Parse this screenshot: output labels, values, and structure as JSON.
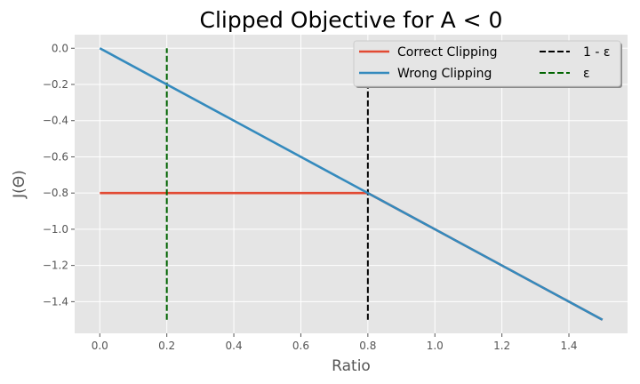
{
  "chart_data": {
    "type": "line",
    "title": "Clipped Objective for A < 0",
    "xlabel": "Ratio",
    "ylabel": "J(Θ)",
    "xlim": [
      -0.075,
      1.575
    ],
    "ylim": [
      -1.575,
      0.075
    ],
    "xticks": [
      0.0,
      0.2,
      0.4,
      0.6,
      0.8,
      1.0,
      1.2,
      1.4
    ],
    "xtick_labels": [
      "0.0",
      "0.2",
      "0.4",
      "0.6",
      "0.8",
      "1.0",
      "1.2",
      "1.4"
    ],
    "yticks": [
      0.0,
      -0.2,
      -0.4,
      -0.6,
      -0.8,
      -1.0,
      -1.2,
      -1.4
    ],
    "ytick_labels": [
      "0.0",
      "−0.2",
      "−0.4",
      "−0.6",
      "−0.8",
      "−1.0",
      "−1.2",
      "−1.4"
    ],
    "grid": true,
    "legend_position": "top-right",
    "legend_columns": 2,
    "series": [
      {
        "name": "Correct Clipping",
        "color": "#E24A33",
        "style": "solid",
        "x": [
          0.0,
          0.8,
          1.5
        ],
        "y": [
          -0.8,
          -0.8,
          -1.5
        ]
      },
      {
        "name": "Wrong Clipping",
        "color": "#348ABD",
        "style": "solid",
        "x": [
          0.0,
          1.5
        ],
        "y": [
          0.0,
          -1.5
        ]
      },
      {
        "name": "1 - ε",
        "color": "#000000",
        "style": "dashed",
        "x": [
          0.8,
          0.8
        ],
        "y": [
          -1.5,
          0.0
        ]
      },
      {
        "name": "ε",
        "color": "#006400",
        "style": "dashed",
        "x": [
          0.2,
          0.2
        ],
        "y": [
          -1.5,
          0.0
        ]
      }
    ],
    "legend_order": [
      0,
      1,
      2,
      3
    ],
    "colors": {
      "plot_background": "#E5E5E5",
      "grid": "#FFFFFF",
      "tick": "#555555"
    }
  }
}
